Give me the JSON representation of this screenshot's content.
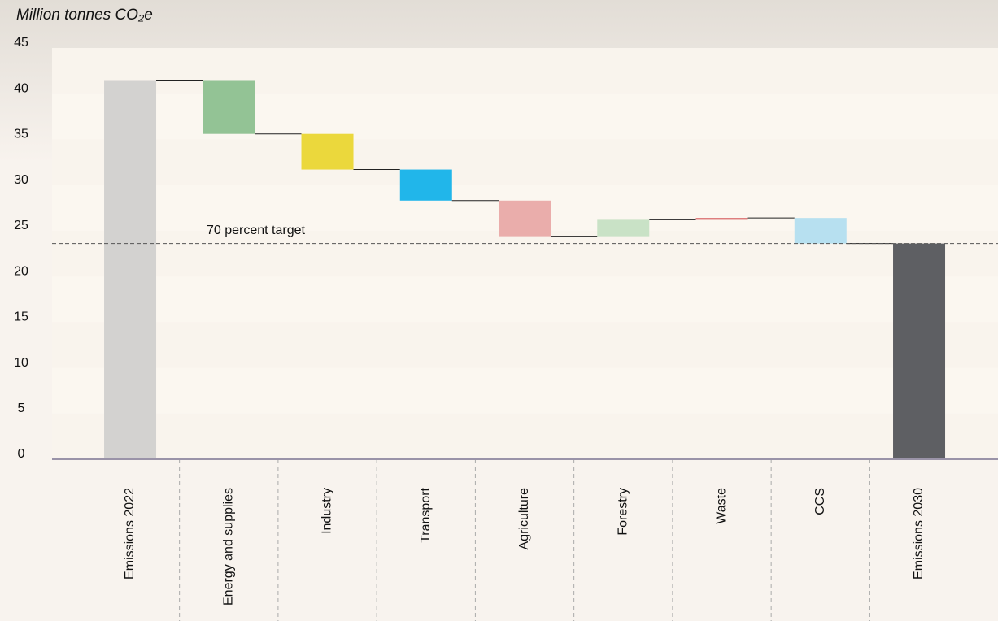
{
  "chart_data": {
    "type": "waterfall",
    "y_label": "Million tonnes CO₂e",
    "categories": [
      "Emissions 2022",
      "Energy and supplies",
      "Industry",
      "Transport",
      "Agriculture",
      "Forestry",
      "Waste",
      "CCS",
      "Emissions 2030"
    ],
    "values": [
      41.4,
      -5.8,
      -3.9,
      -3.4,
      -3.9,
      1.8,
      0.2,
      -2.8,
      23.6
    ],
    "colors": [
      "#d3d2d0",
      "#93c395",
      "#ebd83c",
      "#21b6ea",
      "#eaadab",
      "#c9e2c6",
      "#d96a6a",
      "#b7e0f0",
      "#5e5f63"
    ],
    "target": {
      "label": "70 percent target",
      "value": 23.6
    },
    "ylim": [
      0,
      45
    ],
    "yticks": [
      0,
      5,
      10,
      15,
      20,
      25,
      30,
      35,
      40,
      45
    ]
  }
}
